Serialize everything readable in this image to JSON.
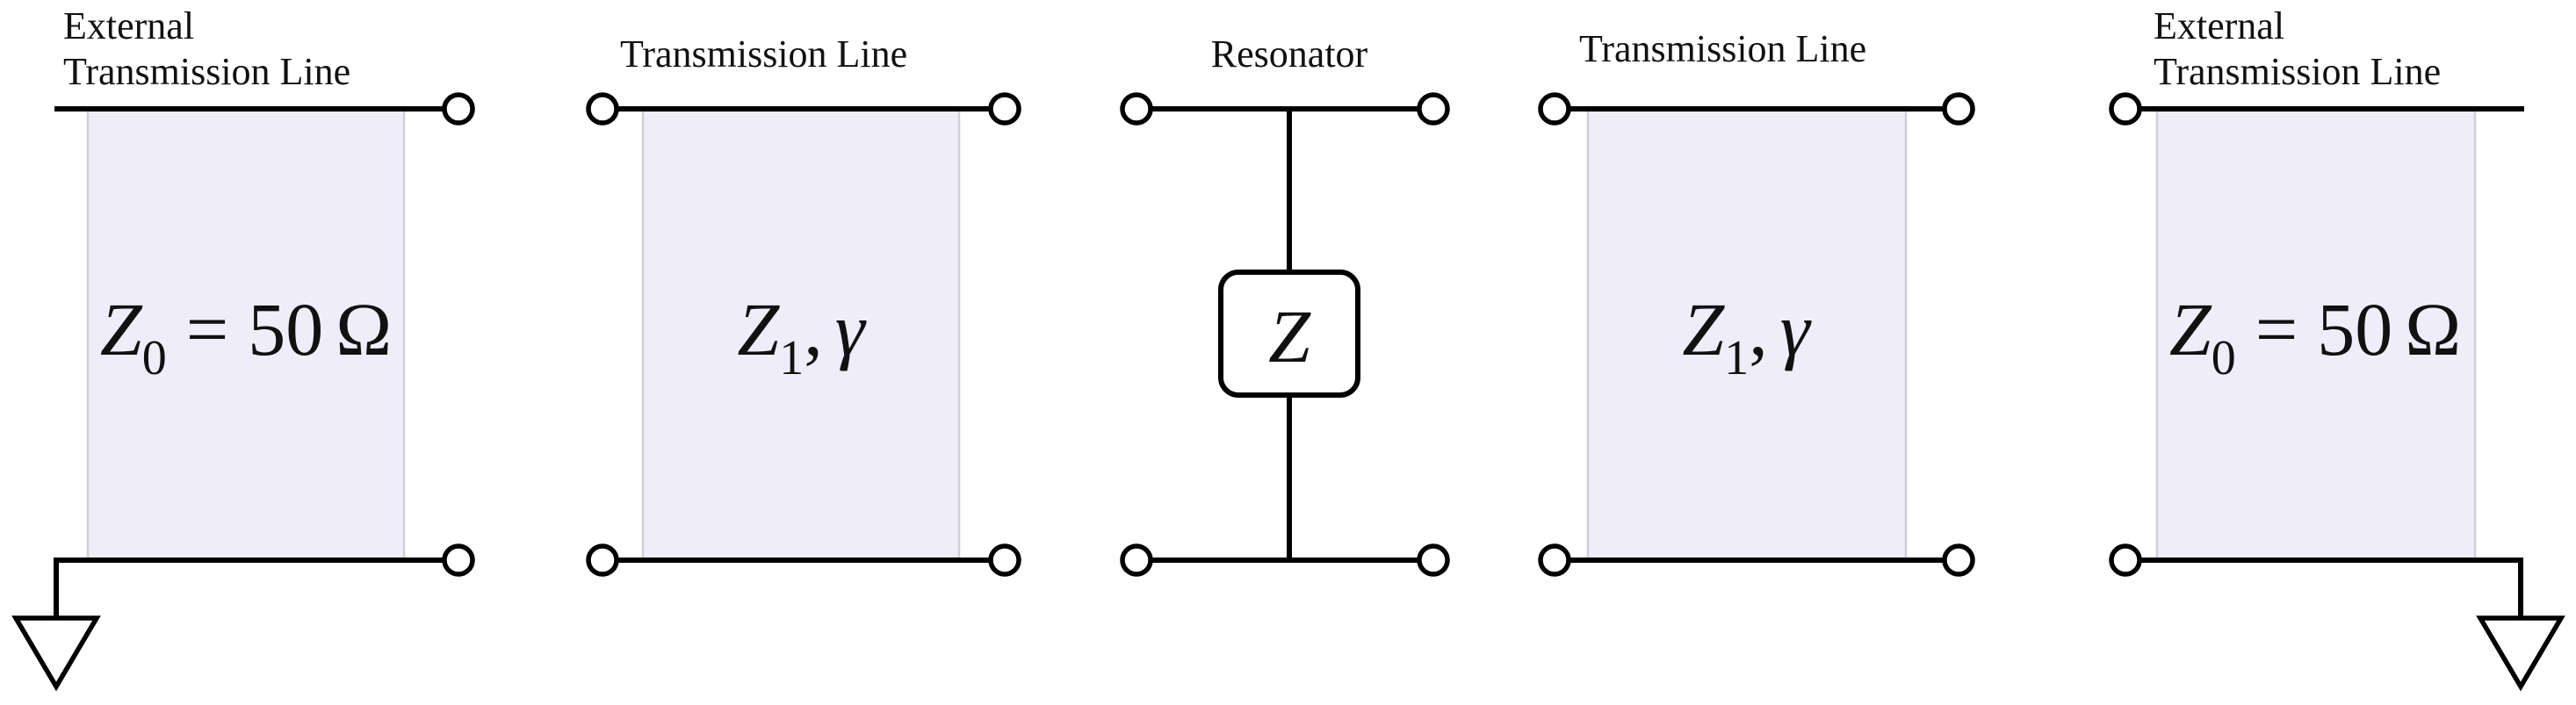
{
  "sections": [
    {
      "id": "ext-left",
      "title_lines": [
        "External",
        "Transmission Line"
      ],
      "impedance": {
        "symbol": "Z",
        "subscript": "0",
        "relation": "=",
        "value": "50",
        "unit": "Ω"
      }
    },
    {
      "id": "tl-left",
      "title_lines": [
        "Transmission Line"
      ],
      "impedance": {
        "symbol": "Z",
        "subscript": "1",
        "separator": ",",
        "propagation": "γ"
      }
    },
    {
      "id": "resonator",
      "title_lines": [
        "Resonator"
      ],
      "element": {
        "symbol": "Z"
      }
    },
    {
      "id": "tl-right",
      "title_lines": [
        "Transmission Line"
      ],
      "impedance": {
        "symbol": "Z",
        "subscript": "1",
        "separator": ",",
        "propagation": "γ"
      }
    },
    {
      "id": "ext-right",
      "title_lines": [
        "External",
        "Transmission Line"
      ],
      "impedance": {
        "symbol": "Z",
        "subscript": "0",
        "relation": "=",
        "value": "50",
        "unit": "Ω"
      }
    }
  ],
  "colors": {
    "panel_fill": "#efedf9",
    "panel_edge": "#cfcfd8",
    "wire": "#000000"
  }
}
